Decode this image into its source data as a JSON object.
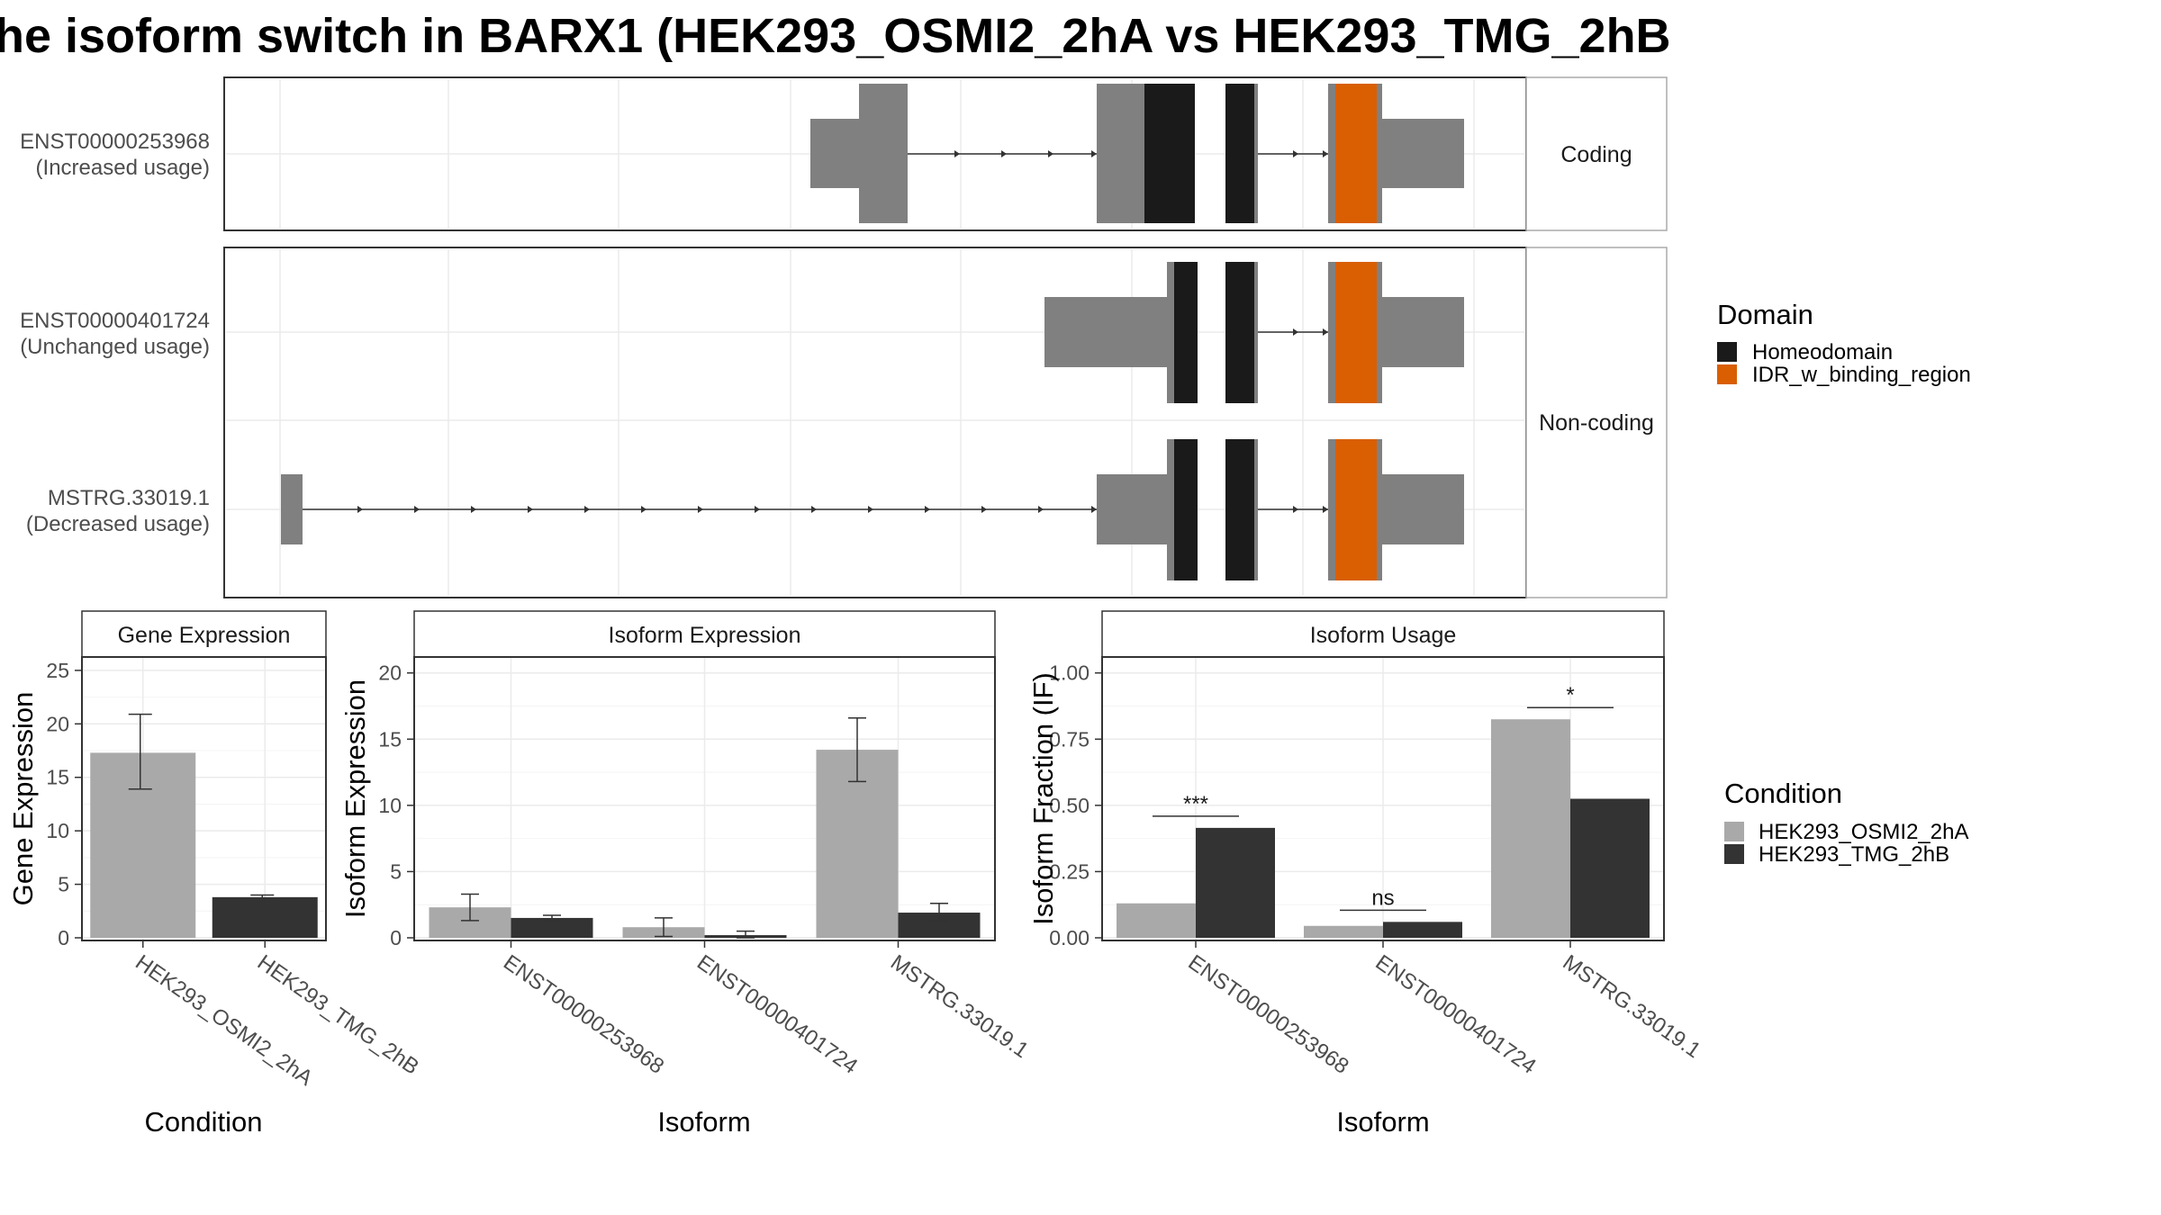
{
  "title": "he isoform switch in BARX1 (HEK293_OSMI2_2hA vs HEK293_TMG_2hB",
  "colors": {
    "utr": "#808080",
    "homeodomain": "#1a1a1a",
    "idr": "#d95f02",
    "cond1": "#a9a9a9",
    "cond2": "#333333",
    "grid": "#ebebeb",
    "frame": "#333333",
    "strip_bg": "#ffffff"
  },
  "structure": {
    "facets": [
      "Coding",
      "Non-coding"
    ],
    "transcripts": [
      {
        "id": "ENST00000253968",
        "usage": "(Increased usage)",
        "facet": "Coding"
      },
      {
        "id": "ENST00000401724",
        "usage": "(Unchanged usage)",
        "facet": "Non-coding"
      },
      {
        "id": "MSTRG.33019.1",
        "usage": "(Decreased usage)",
        "facet": "Non-coding"
      }
    ]
  },
  "legend_domain": {
    "title": "Domain",
    "items": [
      {
        "label": "Homeodomain",
        "color": "#1a1a1a"
      },
      {
        "label": "IDR_w_binding_region",
        "color": "#d95f02"
      }
    ]
  },
  "legend_condition": {
    "title": "Condition",
    "items": [
      {
        "label": "HEK293_OSMI2_2hA",
        "color": "#a9a9a9"
      },
      {
        "label": "HEK293_TMG_2hB",
        "color": "#333333"
      }
    ]
  },
  "chart_data": [
    {
      "type": "bar",
      "title": "Gene Expression",
      "xlabel": "Condition",
      "ylabel": "Gene Expression",
      "categories": [
        "HEK293_OSMI2_2hA",
        "HEK293_TMG_2hB"
      ],
      "values": [
        17.3,
        3.8
      ],
      "error": [
        [
          13.9,
          20.9
        ],
        [
          3.6,
          4.0
        ]
      ],
      "yticks": [
        "0",
        "5",
        "10",
        "15",
        "20",
        "25"
      ],
      "ylim": [
        0,
        26
      ],
      "grid": true
    },
    {
      "type": "bar",
      "title": "Isoform Expression",
      "xlabel": "Isoform",
      "ylabel": "Isoform Expression",
      "categories": [
        "ENST00000253968",
        "ENST00000401724",
        "MSTRG.33019.1"
      ],
      "series": [
        {
          "name": "HEK293_OSMI2_2hA",
          "values": [
            2.3,
            0.8,
            14.2
          ],
          "error": [
            [
              1.3,
              3.3
            ],
            [
              0.1,
              1.5
            ],
            [
              11.8,
              16.6
            ]
          ]
        },
        {
          "name": "HEK293_TMG_2hB",
          "values": [
            1.5,
            0.2,
            1.9
          ],
          "error": [
            [
              1.3,
              1.7
            ],
            [
              0.0,
              0.5
            ],
            [
              1.3,
              2.6
            ]
          ]
        }
      ],
      "yticks": [
        "0",
        "5",
        "10",
        "15",
        "20"
      ],
      "ylim": [
        0,
        21
      ],
      "grid": true
    },
    {
      "type": "bar",
      "title": "Isoform Usage",
      "xlabel": "Isoform",
      "ylabel": "Isoform Fraction (IF)",
      "categories": [
        "ENST00000253968",
        "ENST00000401724",
        "MSTRG.33019.1"
      ],
      "series": [
        {
          "name": "HEK293_OSMI2_2hA",
          "values": [
            0.13,
            0.045,
            0.825
          ]
        },
        {
          "name": "HEK293_TMG_2hB",
          "values": [
            0.415,
            0.06,
            0.525
          ]
        }
      ],
      "significance": [
        "***",
        "ns",
        "*"
      ],
      "yticks": [
        "0.00",
        "0.25",
        "0.50",
        "0.75",
        "1.00"
      ],
      "ylim": [
        0,
        1.05
      ],
      "grid": true
    }
  ]
}
